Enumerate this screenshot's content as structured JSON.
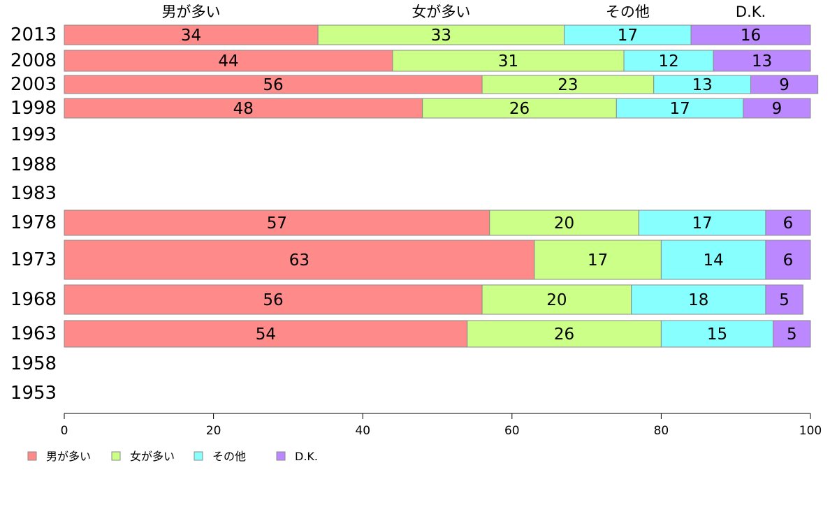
{
  "chart_data": {
    "type": "bar",
    "orientation": "horizontal",
    "stacked": true,
    "categories": [
      "2013",
      "2008",
      "2003",
      "1998",
      "1993",
      "1988",
      "1983",
      "1978",
      "1973",
      "1968",
      "1963",
      "1958",
      "1953"
    ],
    "series": [
      {
        "name": "男が多い",
        "color": "#ff8a8a",
        "values": [
          34,
          44,
          56,
          48,
          null,
          null,
          null,
          57,
          63,
          56,
          54,
          null,
          null
        ]
      },
      {
        "name": "女が多い",
        "color": "#ccff88",
        "values": [
          33,
          31,
          23,
          26,
          null,
          null,
          null,
          20,
          17,
          20,
          26,
          null,
          null
        ]
      },
      {
        "name": "その他",
        "color": "#88ffff",
        "values": [
          17,
          12,
          13,
          17,
          null,
          null,
          null,
          17,
          14,
          18,
          15,
          null,
          null
        ]
      },
      {
        "name": "D.K.",
        "color": "#bb88ff",
        "values": [
          16,
          13,
          9,
          9,
          null,
          null,
          null,
          6,
          6,
          5,
          5,
          null,
          null
        ]
      }
    ],
    "xlim": [
      0,
      100
    ],
    "xticks": [
      0,
      20,
      40,
      60,
      80,
      100
    ],
    "xlabel": "",
    "ylabel": "",
    "title": "",
    "legend": "bottom-left",
    "grid": false
  }
}
